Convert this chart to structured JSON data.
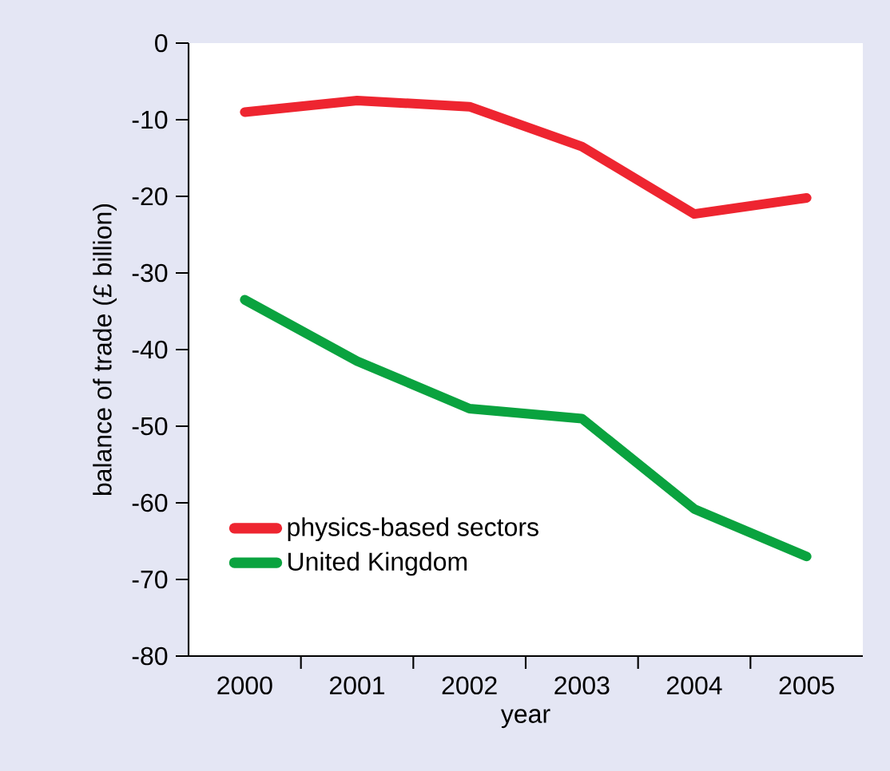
{
  "chart_data": {
    "type": "line",
    "xlabel": "year",
    "ylabel": "balance of trade (£ billion)",
    "categories": [
      "2000",
      "2001",
      "2002",
      "2003",
      "2004",
      "2005"
    ],
    "series": [
      {
        "name": "physics-based sectors",
        "color": "#ee2530",
        "values": [
          -9,
          -7.5,
          -8.3,
          -13.5,
          -22.3,
          -20.2
        ]
      },
      {
        "name": "United Kingdom",
        "color": "#0aa33f",
        "values": [
          -33.5,
          -41.5,
          -47.7,
          -49,
          -60.8,
          -67
        ]
      }
    ],
    "ylim": [
      -80,
      0
    ],
    "yticks": [
      -80,
      -70,
      -60,
      -50,
      -40,
      -30,
      -20,
      -10,
      0
    ],
    "grid": false,
    "legend": "bottom left",
    "marker": "none",
    "line_style": "solid"
  }
}
